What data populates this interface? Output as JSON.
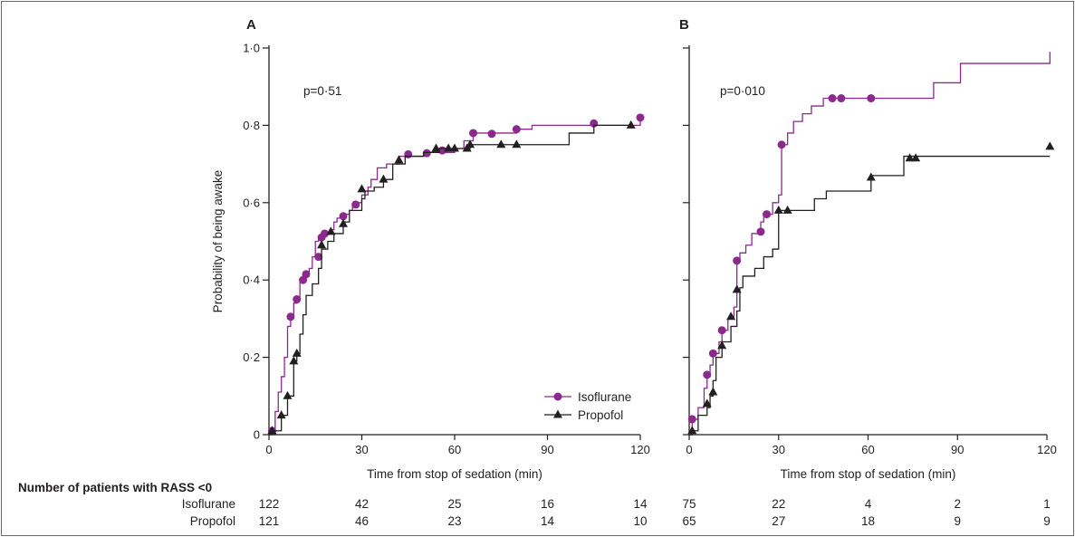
{
  "chart_data": [
    {
      "type": "line",
      "subtype": "kaplan-meier step",
      "panel_label": "A",
      "annotation": "p=0·51",
      "xlabel": "Time from stop of sedation (min)",
      "ylabel": "Probability of being awake",
      "xlim": [
        0,
        120
      ],
      "ylim": [
        0,
        1.0
      ],
      "xticks": [
        0,
        30,
        60,
        90,
        120
      ],
      "xtick_labels": [
        "0",
        "30",
        "60",
        "90",
        "120"
      ],
      "yticks": [
        0,
        0.2,
        0.4,
        0.6,
        0.8,
        1.0
      ],
      "ytick_labels": [
        "0",
        "0·2",
        "0·4",
        "0·6",
        "0·8",
        "1·0"
      ],
      "legend": {
        "placement": "bottom-right",
        "entries": [
          "Isoflurane",
          "Propofol"
        ]
      },
      "series": [
        {
          "name": "Isoflurane",
          "color": "#8b2a8c",
          "marker": "circle",
          "steps": [
            [
              0,
              0
            ],
            [
              1,
              0.01
            ],
            [
              2,
              0.06
            ],
            [
              3,
              0.11
            ],
            [
              4,
              0.15
            ],
            [
              5,
              0.2
            ],
            [
              6,
              0.28
            ],
            [
              7,
              0.31
            ],
            [
              8,
              0.34
            ],
            [
              9,
              0.35
            ],
            [
              10,
              0.4
            ],
            [
              11,
              0.41
            ],
            [
              13,
              0.43
            ],
            [
              14,
              0.46
            ],
            [
              15,
              0.5
            ],
            [
              16,
              0.51
            ],
            [
              17,
              0.52
            ],
            [
              20,
              0.53
            ],
            [
              21,
              0.55
            ],
            [
              22,
              0.56
            ],
            [
              24,
              0.57
            ],
            [
              26,
              0.58
            ],
            [
              27,
              0.59
            ],
            [
              29,
              0.6
            ],
            [
              30,
              0.62
            ],
            [
              32,
              0.64
            ],
            [
              33,
              0.66
            ],
            [
              35,
              0.69
            ],
            [
              38,
              0.7
            ],
            [
              42,
              0.72
            ],
            [
              45,
              0.72
            ],
            [
              50,
              0.73
            ],
            [
              55,
              0.73
            ],
            [
              60,
              0.74
            ],
            [
              63,
              0.76
            ],
            [
              66,
              0.78
            ],
            [
              80,
              0.79
            ],
            [
              85,
              0.8
            ],
            [
              100,
              0.8
            ],
            [
              120,
              0.82
            ]
          ],
          "markers": [
            [
              1,
              0.01
            ],
            [
              7,
              0.305
            ],
            [
              9,
              0.35
            ],
            [
              11,
              0.4
            ],
            [
              12,
              0.415
            ],
            [
              16,
              0.46
            ],
            [
              17,
              0.51
            ],
            [
              18,
              0.52
            ],
            [
              24,
              0.565
            ],
            [
              28,
              0.595
            ],
            [
              45,
              0.725
            ],
            [
              51,
              0.728
            ],
            [
              56,
              0.735
            ],
            [
              66,
              0.78
            ],
            [
              72,
              0.778
            ],
            [
              80,
              0.79
            ],
            [
              105,
              0.805
            ],
            [
              120,
              0.82
            ]
          ]
        },
        {
          "name": "Propofol",
          "color": "#231f20",
          "marker": "triangle",
          "steps": [
            [
              0,
              0
            ],
            [
              2,
              0.01
            ],
            [
              4,
              0.05
            ],
            [
              6,
              0.1
            ],
            [
              8,
              0.19
            ],
            [
              9,
              0.21
            ],
            [
              10,
              0.26
            ],
            [
              11,
              0.31
            ],
            [
              12,
              0.36
            ],
            [
              14,
              0.39
            ],
            [
              16,
              0.43
            ],
            [
              17,
              0.48
            ],
            [
              19,
              0.5
            ],
            [
              21,
              0.52
            ],
            [
              24,
              0.55
            ],
            [
              26,
              0.58
            ],
            [
              30,
              0.61
            ],
            [
              31,
              0.63
            ],
            [
              34,
              0.64
            ],
            [
              37,
              0.66
            ],
            [
              40,
              0.7
            ],
            [
              44,
              0.72
            ],
            [
              50,
              0.73
            ],
            [
              55,
              0.74
            ],
            [
              60,
              0.74
            ],
            [
              65,
              0.75
            ],
            [
              95,
              0.75
            ],
            [
              97,
              0.78
            ],
            [
              105,
              0.8
            ],
            [
              117,
              0.8
            ]
          ],
          "markers": [
            [
              1,
              0.01
            ],
            [
              4,
              0.05
            ],
            [
              6,
              0.1
            ],
            [
              8,
              0.19
            ],
            [
              9,
              0.21
            ],
            [
              17,
              0.49
            ],
            [
              20,
              0.525
            ],
            [
              24,
              0.545
            ],
            [
              30,
              0.635
            ],
            [
              37,
              0.66
            ],
            [
              42,
              0.71
            ],
            [
              54,
              0.74
            ],
            [
              58,
              0.74
            ],
            [
              60,
              0.74
            ],
            [
              64,
              0.74
            ],
            [
              65,
              0.75
            ],
            [
              75,
              0.75
            ],
            [
              80,
              0.75
            ],
            [
              117,
              0.8
            ]
          ]
        }
      ]
    },
    {
      "type": "line",
      "subtype": "kaplan-meier step",
      "panel_label": "B",
      "annotation": "p=0·010",
      "xlabel": "Time from stop of sedation (min)",
      "ylabel": "",
      "xlim": [
        0,
        120
      ],
      "ylim": [
        0,
        1.0
      ],
      "xticks": [
        0,
        30,
        60,
        90,
        120
      ],
      "xtick_labels": [
        "0",
        "30",
        "60",
        "90",
        "120"
      ],
      "yticks": [
        0,
        0.2,
        0.4,
        0.6,
        0.8,
        1.0
      ],
      "series": [
        {
          "name": "Isoflurane",
          "color": "#8b2a8c",
          "marker": "circle",
          "steps": [
            [
              0,
              0
            ],
            [
              1,
              0.04
            ],
            [
              3,
              0.07
            ],
            [
              5,
              0.12
            ],
            [
              6,
              0.15
            ],
            [
              7,
              0.18
            ],
            [
              8,
              0.21
            ],
            [
              10,
              0.24
            ],
            [
              11,
              0.27
            ],
            [
              13,
              0.3
            ],
            [
              15,
              0.33
            ],
            [
              16,
              0.45
            ],
            [
              17,
              0.47
            ],
            [
              19,
              0.49
            ],
            [
              21,
              0.52
            ],
            [
              24,
              0.55
            ],
            [
              25,
              0.57
            ],
            [
              28,
              0.6
            ],
            [
              30,
              0.62
            ],
            [
              31,
              0.75
            ],
            [
              33,
              0.78
            ],
            [
              35,
              0.81
            ],
            [
              38,
              0.83
            ],
            [
              41,
              0.85
            ],
            [
              45,
              0.87
            ],
            [
              51,
              0.87
            ],
            [
              61,
              0.87
            ],
            [
              65,
              0.87
            ],
            [
              80,
              0.87
            ],
            [
              82,
              0.91
            ],
            [
              90,
              0.91
            ],
            [
              91,
              0.96
            ],
            [
              120,
              0.96
            ],
            [
              121,
              0.99
            ]
          ],
          "markers": [
            [
              1,
              0.04
            ],
            [
              6,
              0.155
            ],
            [
              8,
              0.21
            ],
            [
              11,
              0.27
            ],
            [
              16,
              0.45
            ],
            [
              24,
              0.525
            ],
            [
              26,
              0.57
            ],
            [
              31,
              0.75
            ],
            [
              48,
              0.87
            ],
            [
              51,
              0.87
            ],
            [
              61,
              0.87
            ]
          ]
        },
        {
          "name": "Propofol",
          "color": "#231f20",
          "marker": "triangle",
          "steps": [
            [
              0,
              0
            ],
            [
              1,
              0.01
            ],
            [
              3,
              0.05
            ],
            [
              6,
              0.07
            ],
            [
              7,
              0.1
            ],
            [
              8,
              0.14
            ],
            [
              9,
              0.2
            ],
            [
              11,
              0.24
            ],
            [
              14,
              0.28
            ],
            [
              16,
              0.32
            ],
            [
              17,
              0.38
            ],
            [
              18,
              0.41
            ],
            [
              22,
              0.43
            ],
            [
              25,
              0.46
            ],
            [
              28,
              0.48
            ],
            [
              30,
              0.58
            ],
            [
              34,
              0.58
            ],
            [
              42,
              0.61
            ],
            [
              46,
              0.63
            ],
            [
              55,
              0.63
            ],
            [
              61,
              0.67
            ],
            [
              70,
              0.67
            ],
            [
              72,
              0.72
            ],
            [
              76,
              0.72
            ],
            [
              121,
              0.72
            ]
          ],
          "markers": [
            [
              1,
              0.01
            ],
            [
              6,
              0.08
            ],
            [
              8,
              0.11
            ],
            [
              11,
              0.23
            ],
            [
              14,
              0.305
            ],
            [
              16,
              0.375
            ],
            [
              30,
              0.58
            ],
            [
              33,
              0.58
            ],
            [
              61,
              0.665
            ],
            [
              74,
              0.715
            ],
            [
              76,
              0.715
            ],
            [
              121,
              0.745
            ]
          ]
        }
      ]
    }
  ],
  "risk_table": {
    "title": "Number of patients with RASS <0",
    "rows": [
      {
        "label": "Isoflurane",
        "panel_a": [
          "122",
          "42",
          "25",
          "16",
          "14"
        ],
        "panel_b": [
          "75",
          "22",
          "4",
          "2",
          "1"
        ]
      },
      {
        "label": "Propofol",
        "panel_a": [
          "121",
          "46",
          "23",
          "14",
          "10"
        ],
        "panel_b": [
          "65",
          "27",
          "18",
          "9",
          "9"
        ]
      }
    ]
  }
}
